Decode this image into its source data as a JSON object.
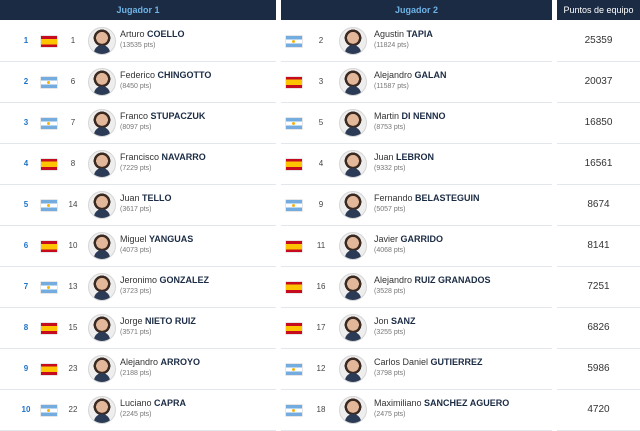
{
  "header": {
    "player1": "Jugador 1",
    "player2": "Jugador 2",
    "team_points": "Puntos de equipo"
  },
  "rows": [
    {
      "pos": "1",
      "team_points": "25359",
      "p1": {
        "flag": "spain-flag",
        "rank": "1",
        "first": "Arturo",
        "last": "COELLO",
        "pts": "(13535 pts)"
      },
      "p2": {
        "flag": "argentina-flag",
        "rank": "2",
        "first": "Agustin",
        "last": "TAPIA",
        "pts": "(11824 pts)"
      }
    },
    {
      "pos": "2",
      "team_points": "20037",
      "p1": {
        "flag": "argentina-flag",
        "rank": "6",
        "first": "Federico",
        "last": "CHINGOTTO",
        "pts": "(8450 pts)"
      },
      "p2": {
        "flag": "spain-flag",
        "rank": "3",
        "first": "Alejandro",
        "last": "GALAN",
        "pts": "(11587 pts)"
      }
    },
    {
      "pos": "3",
      "team_points": "16850",
      "p1": {
        "flag": "argentina-flag",
        "rank": "7",
        "first": "Franco",
        "last": "STUPACZUK",
        "pts": "(8097 pts)"
      },
      "p2": {
        "flag": "argentina-flag",
        "rank": "5",
        "first": "Martin",
        "last": "DI NENNO",
        "pts": "(8753 pts)"
      }
    },
    {
      "pos": "4",
      "team_points": "16561",
      "p1": {
        "flag": "spain-flag",
        "rank": "8",
        "first": "Francisco",
        "last": "NAVARRO",
        "pts": "(7229 pts)"
      },
      "p2": {
        "flag": "spain-flag",
        "rank": "4",
        "first": "Juan",
        "last": "LEBRON",
        "pts": "(9332 pts)"
      }
    },
    {
      "pos": "5",
      "team_points": "8674",
      "p1": {
        "flag": "argentina-flag",
        "rank": "14",
        "first": "Juan",
        "last": "TELLO",
        "pts": "(3617 pts)"
      },
      "p2": {
        "flag": "argentina-flag",
        "rank": "9",
        "first": "Fernando",
        "last": "BELASTEGUIN",
        "pts": "(5057 pts)"
      }
    },
    {
      "pos": "6",
      "team_points": "8141",
      "p1": {
        "flag": "spain-flag",
        "rank": "10",
        "first": "Miguel",
        "last": "YANGUAS",
        "pts": "(4073 pts)"
      },
      "p2": {
        "flag": "spain-flag",
        "rank": "11",
        "first": "Javier",
        "last": "GARRIDO",
        "pts": "(4068 pts)"
      }
    },
    {
      "pos": "7",
      "team_points": "7251",
      "p1": {
        "flag": "argentina-flag",
        "rank": "13",
        "first": "Jeronimo",
        "last": "GONZALEZ",
        "pts": "(3723 pts)"
      },
      "p2": {
        "flag": "spain-flag",
        "rank": "16",
        "first": "Alejandro",
        "last": "RUIZ GRANADOS",
        "pts": "(3528 pts)"
      }
    },
    {
      "pos": "8",
      "team_points": "6826",
      "p1": {
        "flag": "spain-flag",
        "rank": "15",
        "first": "Jorge",
        "last": "NIETO RUIZ",
        "pts": "(3571 pts)"
      },
      "p2": {
        "flag": "spain-flag",
        "rank": "17",
        "first": "Jon",
        "last": "SANZ",
        "pts": "(3255 pts)"
      }
    },
    {
      "pos": "9",
      "team_points": "5986",
      "p1": {
        "flag": "spain-flag",
        "rank": "23",
        "first": "Alejandro",
        "last": "ARROYO",
        "pts": "(2188 pts)"
      },
      "p2": {
        "flag": "argentina-flag",
        "rank": "12",
        "first": "Carlos Daniel",
        "last": "GUTIERREZ",
        "pts": "(3798 pts)"
      }
    },
    {
      "pos": "10",
      "team_points": "4720",
      "p1": {
        "flag": "argentina-flag",
        "rank": "22",
        "first": "Luciano",
        "last": "CAPRA",
        "pts": "(2245 pts)"
      },
      "p2": {
        "flag": "argentina-flag",
        "rank": "18",
        "first": "Maximiliano",
        "last": "SANCHEZ AGUERO",
        "pts": "(2475 pts)"
      }
    }
  ]
}
